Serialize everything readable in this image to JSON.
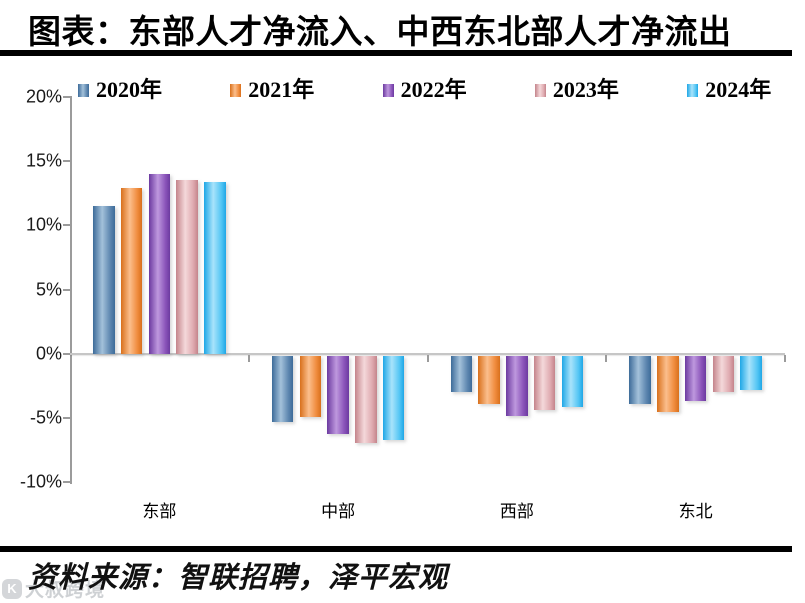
{
  "title": "图表：东部人才净流入、中西东北部人才净流出",
  "source": "资料来源：智联招聘，泽平宏观",
  "watermark": {
    "logo": "K",
    "text": "大叔跨境"
  },
  "chart_data": {
    "type": "bar",
    "title": "图表：东部人才净流入、中西东北部人才净流出",
    "xlabel": "",
    "ylabel": "",
    "categories": [
      "东部",
      "中部",
      "西部",
      "东北"
    ],
    "series": [
      {
        "name": "2020年",
        "color": "#5E87B0",
        "color_dark": "#3D6B99",
        "color_light": "#A3C1DA",
        "values": [
          11.5,
          -5.2,
          -2.8,
          -3.8
        ]
      },
      {
        "name": "2021年",
        "color": "#F08C3E",
        "color_dark": "#D8701C",
        "color_light": "#FBBE8C",
        "values": [
          12.9,
          -4.8,
          -3.8,
          -4.4
        ]
      },
      {
        "name": "2022年",
        "color": "#8B55BA",
        "color_dark": "#6C3AA0",
        "color_light": "#BE98DE",
        "values": [
          14.0,
          -6.1,
          -4.7,
          -3.5
        ]
      },
      {
        "name": "2023年",
        "color": "#DFAAB0",
        "color_dark": "#C4848B",
        "color_light": "#F4D8DA",
        "values": [
          13.5,
          -6.8,
          -4.2,
          -2.8
        ]
      },
      {
        "name": "2024年",
        "color": "#55C6F4",
        "color_dark": "#1FA7E6",
        "color_light": "#A8E3FB",
        "values": [
          13.4,
          -6.6,
          -4.0,
          -2.7
        ]
      }
    ],
    "ylim": [
      -10,
      20
    ],
    "ytick_step": 5,
    "ytick_labels": [
      "20%",
      "15%",
      "10%",
      "5%",
      "0%",
      "-5%",
      "-10%"
    ],
    "legend_position": "top",
    "grid": false
  }
}
